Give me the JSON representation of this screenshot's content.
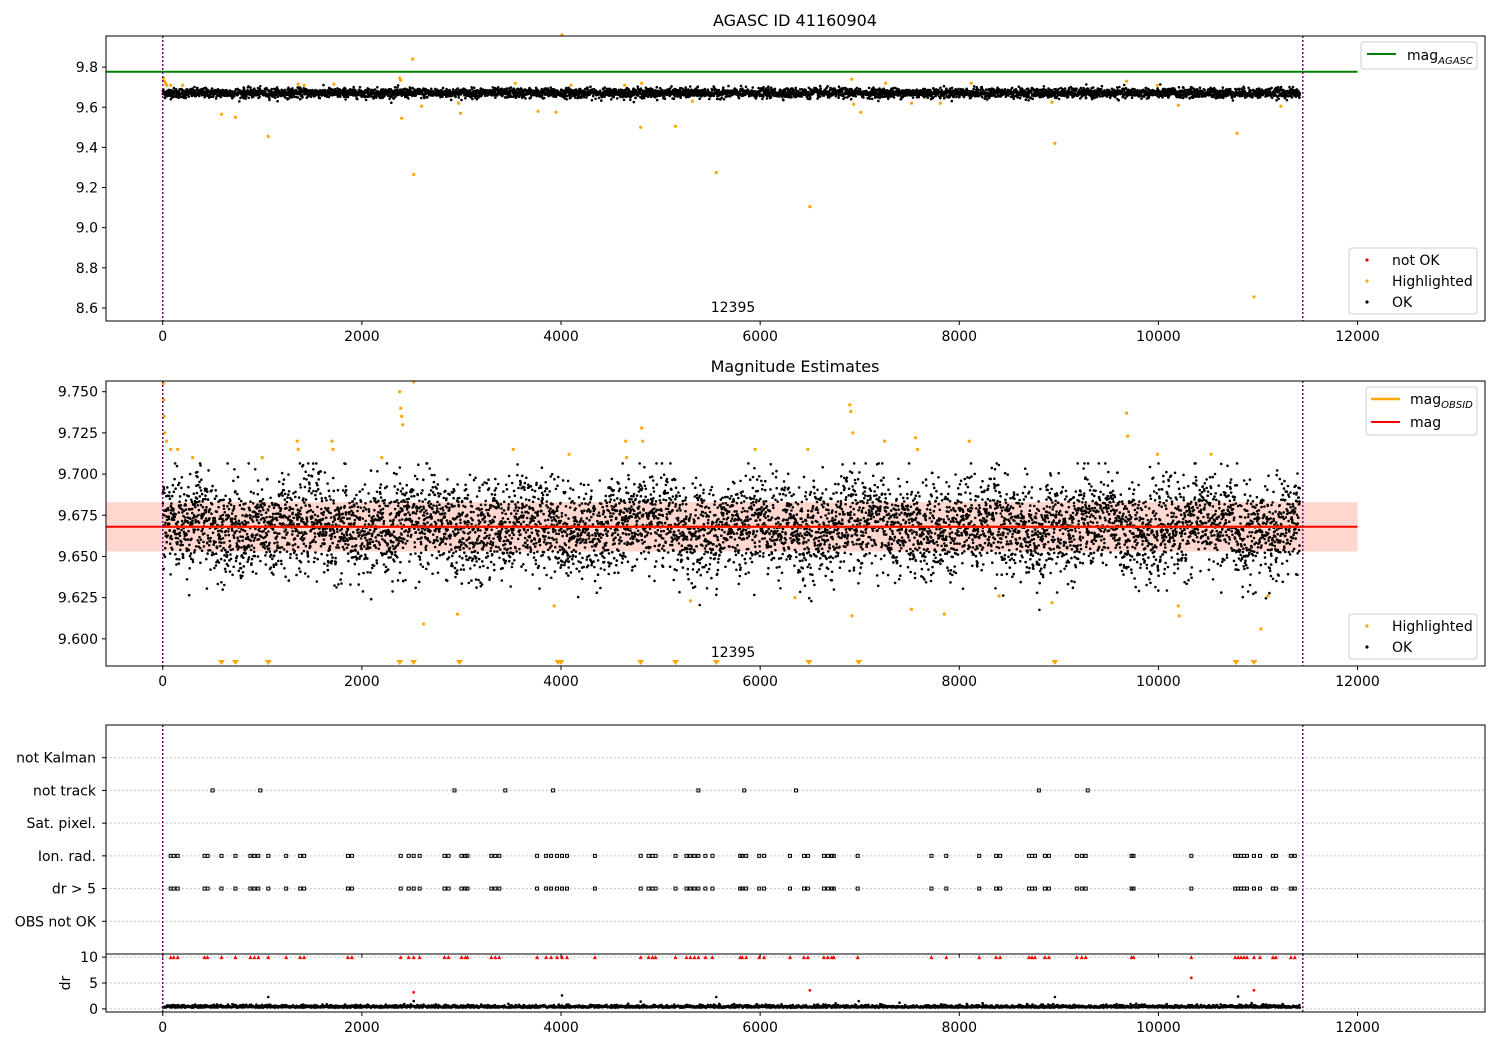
{
  "colors": {
    "ok": "#000000",
    "highlighted": "#ffa500",
    "not_ok": "#ff0000",
    "mag_agasc_line": "#008000",
    "mag_line": "#ff0000",
    "mag_obsid_line": "#ffa500",
    "mag_band": "#ffb6a8",
    "obs_boundary": "#800080",
    "flag_gridline": "#b0b0b0"
  },
  "chart_data": [
    {
      "type": "scatter",
      "title": "AGASC ID 41160904",
      "xlim": [
        -570,
        13280
      ],
      "ylim": [
        8.535,
        9.955
      ],
      "xticks": [
        "0",
        "2000",
        "4000",
        "6000",
        "8000",
        "10000",
        "12000"
      ],
      "yticks": [
        "8.6",
        "8.8",
        "9.0",
        "9.2",
        "9.4",
        "9.6",
        "9.8"
      ],
      "obs_boundaries": [
        0,
        11450
      ],
      "obs_label": "12395",
      "obs_label_x": 5700,
      "grid": false,
      "legend_lines": {
        "position": "top-right",
        "entries": [
          "mag",
          "AGASC"
        ]
      },
      "legend_points": {
        "position": "bottom-right",
        "entries": [
          "not OK",
          "Highlighted",
          "OK"
        ]
      },
      "reference_lines": [
        {
          "name": "mag_AGASC",
          "y": 9.777,
          "x_range": [
            -570,
            12000
          ]
        }
      ],
      "series": [
        {
          "name": "OK",
          "x_range": [
            0,
            11420
          ],
          "y_mean": 9.671,
          "y_spread": 0.012,
          "n": 5200
        },
        {
          "name": "Highlighted",
          "points": [
            [
              5,
              9.745
            ],
            [
              15,
              9.73
            ],
            [
              30,
              9.72
            ],
            [
              40,
              9.71
            ],
            [
              80,
              9.71
            ],
            [
              200,
              9.71
            ],
            [
              590,
              9.565
            ],
            [
              730,
              9.55
            ],
            [
              1060,
              9.455
            ],
            [
              1360,
              9.715
            ],
            [
              1420,
              9.71
            ],
            [
              1720,
              9.715
            ],
            [
              2380,
              9.745
            ],
            [
              2390,
              9.735
            ],
            [
              2400,
              9.545
            ],
            [
              2510,
              9.84
            ],
            [
              2520,
              9.265
            ],
            [
              2600,
              9.605
            ],
            [
              2970,
              9.62
            ],
            [
              2990,
              9.57
            ],
            [
              3540,
              9.72
            ],
            [
              3770,
              9.58
            ],
            [
              3950,
              9.575
            ],
            [
              4010,
              9.96
            ],
            [
              4100,
              9.71
            ],
            [
              4640,
              9.71
            ],
            [
              4800,
              9.5
            ],
            [
              4810,
              9.72
            ],
            [
              5150,
              9.505
            ],
            [
              5320,
              9.63
            ],
            [
              5560,
              9.275
            ],
            [
              6500,
              9.105
            ],
            [
              6920,
              9.74
            ],
            [
              6940,
              9.615
            ],
            [
              7010,
              9.575
            ],
            [
              7260,
              9.72
            ],
            [
              7520,
              9.62
            ],
            [
              7810,
              9.62
            ],
            [
              8120,
              9.72
            ],
            [
              8930,
              9.625
            ],
            [
              8960,
              9.42
            ],
            [
              9680,
              9.73
            ],
            [
              9990,
              9.71
            ],
            [
              10200,
              9.61
            ],
            [
              10790,
              9.47
            ],
            [
              10960,
              8.655
            ],
            [
              11230,
              9.605
            ]
          ]
        },
        {
          "name": "not OK",
          "points": []
        }
      ]
    },
    {
      "type": "scatter",
      "title": "Magnitude Estimates",
      "xlim": [
        -570,
        13280
      ],
      "ylim": [
        9.5835,
        9.7565
      ],
      "xticks": [
        "0",
        "2000",
        "4000",
        "6000",
        "8000",
        "10000",
        "12000"
      ],
      "yticks": [
        "9.600",
        "9.625",
        "9.650",
        "9.675",
        "9.700",
        "9.725",
        "9.750"
      ],
      "obs_boundaries": [
        0,
        11450
      ],
      "obs_label": "12395",
      "obs_label_x": 5700,
      "grid": false,
      "legend_lines": {
        "position": "top-right",
        "entries": [
          "mag",
          "OBSID",
          "mag"
        ]
      },
      "legend_points": {
        "position": "bottom-right",
        "entries": [
          "Highlighted",
          "OK"
        ]
      },
      "reference_lines": [
        {
          "name": "mag",
          "y": 9.668,
          "band": [
            9.653,
            9.683
          ],
          "x_range": [
            -570,
            12000
          ]
        },
        {
          "name": "mag_OBSID",
          "y": 9.668,
          "x_range": [
            0,
            11450
          ]
        }
      ],
      "series": [
        {
          "name": "OK",
          "x_range": [
            0,
            11420
          ],
          "y_mean": 9.668,
          "y_spread": 0.014,
          "n": 7000
        },
        {
          "name": "Highlighted",
          "points": [
            [
              5,
              9.755
            ],
            [
              10,
              9.745
            ],
            [
              15,
              9.735
            ],
            [
              20,
              9.725
            ],
            [
              40,
              9.72
            ],
            [
              80,
              9.715
            ],
            [
              150,
              9.715
            ],
            [
              300,
              9.71
            ],
            [
              1000,
              9.71
            ],
            [
              1350,
              9.72
            ],
            [
              1360,
              9.715
            ],
            [
              1700,
              9.72
            ],
            [
              1710,
              9.715
            ],
            [
              2200,
              9.71
            ],
            [
              2380,
              9.75
            ],
            [
              2390,
              9.74
            ],
            [
              2400,
              9.735
            ],
            [
              2410,
              9.73
            ],
            [
              2520,
              9.756
            ],
            [
              2620,
              9.609
            ],
            [
              2960,
              9.615
            ],
            [
              3520,
              9.715
            ],
            [
              3930,
              9.62
            ],
            [
              4080,
              9.712
            ],
            [
              4650,
              9.72
            ],
            [
              4660,
              9.71
            ],
            [
              4810,
              9.728
            ],
            [
              4820,
              9.72
            ],
            [
              5300,
              9.623
            ],
            [
              5950,
              9.715
            ],
            [
              6350,
              9.625
            ],
            [
              6480,
              9.715
            ],
            [
              6900,
              9.742
            ],
            [
              6910,
              9.738
            ],
            [
              6920,
              9.614
            ],
            [
              6930,
              9.725
            ],
            [
              7250,
              9.72
            ],
            [
              7520,
              9.618
            ],
            [
              7560,
              9.722
            ],
            [
              7580,
              9.715
            ],
            [
              7850,
              9.615
            ],
            [
              8100,
              9.72
            ],
            [
              8400,
              9.626
            ],
            [
              8930,
              9.622
            ],
            [
              9680,
              9.737
            ],
            [
              9690,
              9.723
            ],
            [
              9990,
              9.712
            ],
            [
              10200,
              9.62
            ],
            [
              10210,
              9.614
            ],
            [
              10530,
              9.712
            ],
            [
              11030,
              9.606
            ],
            [
              11100,
              9.626
            ]
          ]
        },
        {
          "name": "Highlighted (below range)",
          "points": [
            [
              590,
              9.585
            ],
            [
              730,
              9.585
            ],
            [
              1060,
              9.585
            ],
            [
              2380,
              9.585
            ],
            [
              2520,
              9.585
            ],
            [
              2980,
              9.585
            ],
            [
              3970,
              9.585
            ],
            [
              4000,
              9.585
            ],
            [
              4800,
              9.585
            ],
            [
              5150,
              9.585
            ],
            [
              5560,
              9.585
            ],
            [
              6490,
              9.585
            ],
            [
              6990,
              9.585
            ],
            [
              8960,
              9.585
            ],
            [
              10780,
              9.585
            ],
            [
              10960,
              9.585
            ]
          ]
        }
      ]
    },
    {
      "type": "scatter",
      "title": "",
      "xlim": [
        -570,
        13280
      ],
      "xticks": [
        "0",
        "2000",
        "4000",
        "6000",
        "8000",
        "10000",
        "12000"
      ],
      "obs_boundaries": [
        0,
        11450
      ],
      "grid": true,
      "flag_rows": [
        {
          "label": "not Kalman",
          "x": []
        },
        {
          "label": "not track",
          "x": [
            500,
            980,
            2930,
            3440,
            3920,
            5380,
            5840,
            6360,
            8800,
            9290
          ]
        },
        {
          "label": "Sat. pixel.",
          "x": []
        },
        {
          "label": "Ion. rad.",
          "x": [
            80,
            110,
            150,
            420,
            450,
            590,
            730,
            880,
            920,
            960,
            1060,
            1240,
            1380,
            1420,
            1860,
            1900,
            2390,
            2470,
            2520,
            2580,
            2830,
            2870,
            3000,
            3040,
            3060,
            3300,
            3340,
            3380,
            3760,
            3850,
            3900,
            3960,
            4010,
            4060,
            4340,
            4800,
            4880,
            4920,
            4950,
            5150,
            5260,
            5300,
            5340,
            5380,
            5450,
            5520,
            5800,
            5820,
            5860,
            5990,
            6040,
            6300,
            6440,
            6480,
            6640,
            6680,
            6720,
            6740,
            6980,
            7720,
            7870,
            8200,
            8370,
            8410,
            8700,
            8730,
            8760,
            8860,
            8900,
            9180,
            9230,
            9270,
            9730,
            9750,
            10330,
            10770,
            10800,
            10830,
            10860,
            10890,
            10960,
            11020,
            11150,
            11180,
            11330,
            11370
          ]
        },
        {
          "label": "dr > 5",
          "x": [
            80,
            110,
            150,
            420,
            450,
            590,
            730,
            880,
            920,
            960,
            1060,
            1240,
            1380,
            1420,
            1860,
            1900,
            2390,
            2470,
            2520,
            2580,
            2830,
            2870,
            3000,
            3040,
            3060,
            3300,
            3340,
            3380,
            3760,
            3850,
            3900,
            3960,
            4010,
            4060,
            4340,
            4800,
            4880,
            4920,
            4950,
            5150,
            5260,
            5300,
            5340,
            5380,
            5450,
            5520,
            5800,
            5820,
            5860,
            5990,
            6040,
            6300,
            6440,
            6480,
            6640,
            6680,
            6720,
            6740,
            6980,
            7720,
            7870,
            8200,
            8370,
            8410,
            8700,
            8730,
            8760,
            8860,
            8900,
            9180,
            9230,
            9270,
            9730,
            9750,
            10330,
            10770,
            10800,
            10830,
            10860,
            10890,
            10960,
            11020,
            11150,
            11180,
            11330,
            11370
          ]
        },
        {
          "label": "OBS not OK",
          "x": []
        }
      ]
    },
    {
      "type": "scatter",
      "title": "",
      "ylabel": "dr",
      "xlim": [
        -570,
        13280
      ],
      "ylim": [
        -0.6,
        10.6
      ],
      "xticks": [
        "0",
        "2000",
        "4000",
        "6000",
        "8000",
        "10000",
        "12000"
      ],
      "yticks": [
        "0",
        "5",
        "10"
      ],
      "obs_boundaries": [
        0,
        11450
      ],
      "grid": true,
      "series": [
        {
          "name": "OK",
          "x_range": [
            0,
            11420
          ],
          "y_mean": 0.35,
          "y_spread": 0.25,
          "n": 3000
        },
        {
          "name": "OK (scattered)",
          "points": [
            [
              1060,
              2.3
            ],
            [
              2520,
              1.5
            ],
            [
              4010,
              2.6
            ],
            [
              4800,
              1.4
            ],
            [
              5560,
              2.3
            ],
            [
              6990,
              1.5
            ],
            [
              8960,
              2.3
            ],
            [
              10800,
              2.4
            ],
            [
              7400,
              1.2
            ]
          ]
        },
        {
          "name": "not OK",
          "points": [
            [
              2520,
              3.2
            ],
            [
              6500,
              3.6
            ],
            [
              10330,
              6.0
            ],
            [
              10960,
              3.6
            ]
          ]
        },
        {
          "name": "not OK (capped)",
          "x": [
            80,
            110,
            150,
            420,
            450,
            590,
            730,
            880,
            920,
            960,
            1060,
            1240,
            1380,
            1420,
            1860,
            1900,
            2390,
            2470,
            2520,
            2580,
            2830,
            2870,
            3000,
            3040,
            3060,
            3300,
            3340,
            3380,
            3760,
            3850,
            3900,
            3960,
            4010,
            4060,
            4340,
            4800,
            4880,
            4920,
            4950,
            5150,
            5260,
            5300,
            5340,
            5380,
            5450,
            5520,
            5800,
            5820,
            5860,
            5990,
            6040,
            6300,
            6440,
            6480,
            6640,
            6680,
            6720,
            6740,
            6980,
            7720,
            7870,
            8200,
            8370,
            8410,
            8700,
            8730,
            8760,
            8860,
            8900,
            9180,
            9230,
            9270,
            9730,
            9750,
            10330,
            10770,
            10800,
            10830,
            10860,
            10890,
            10960,
            11020,
            11150,
            11180,
            11330,
            11370
          ],
          "y": 10
        }
      ]
    }
  ]
}
